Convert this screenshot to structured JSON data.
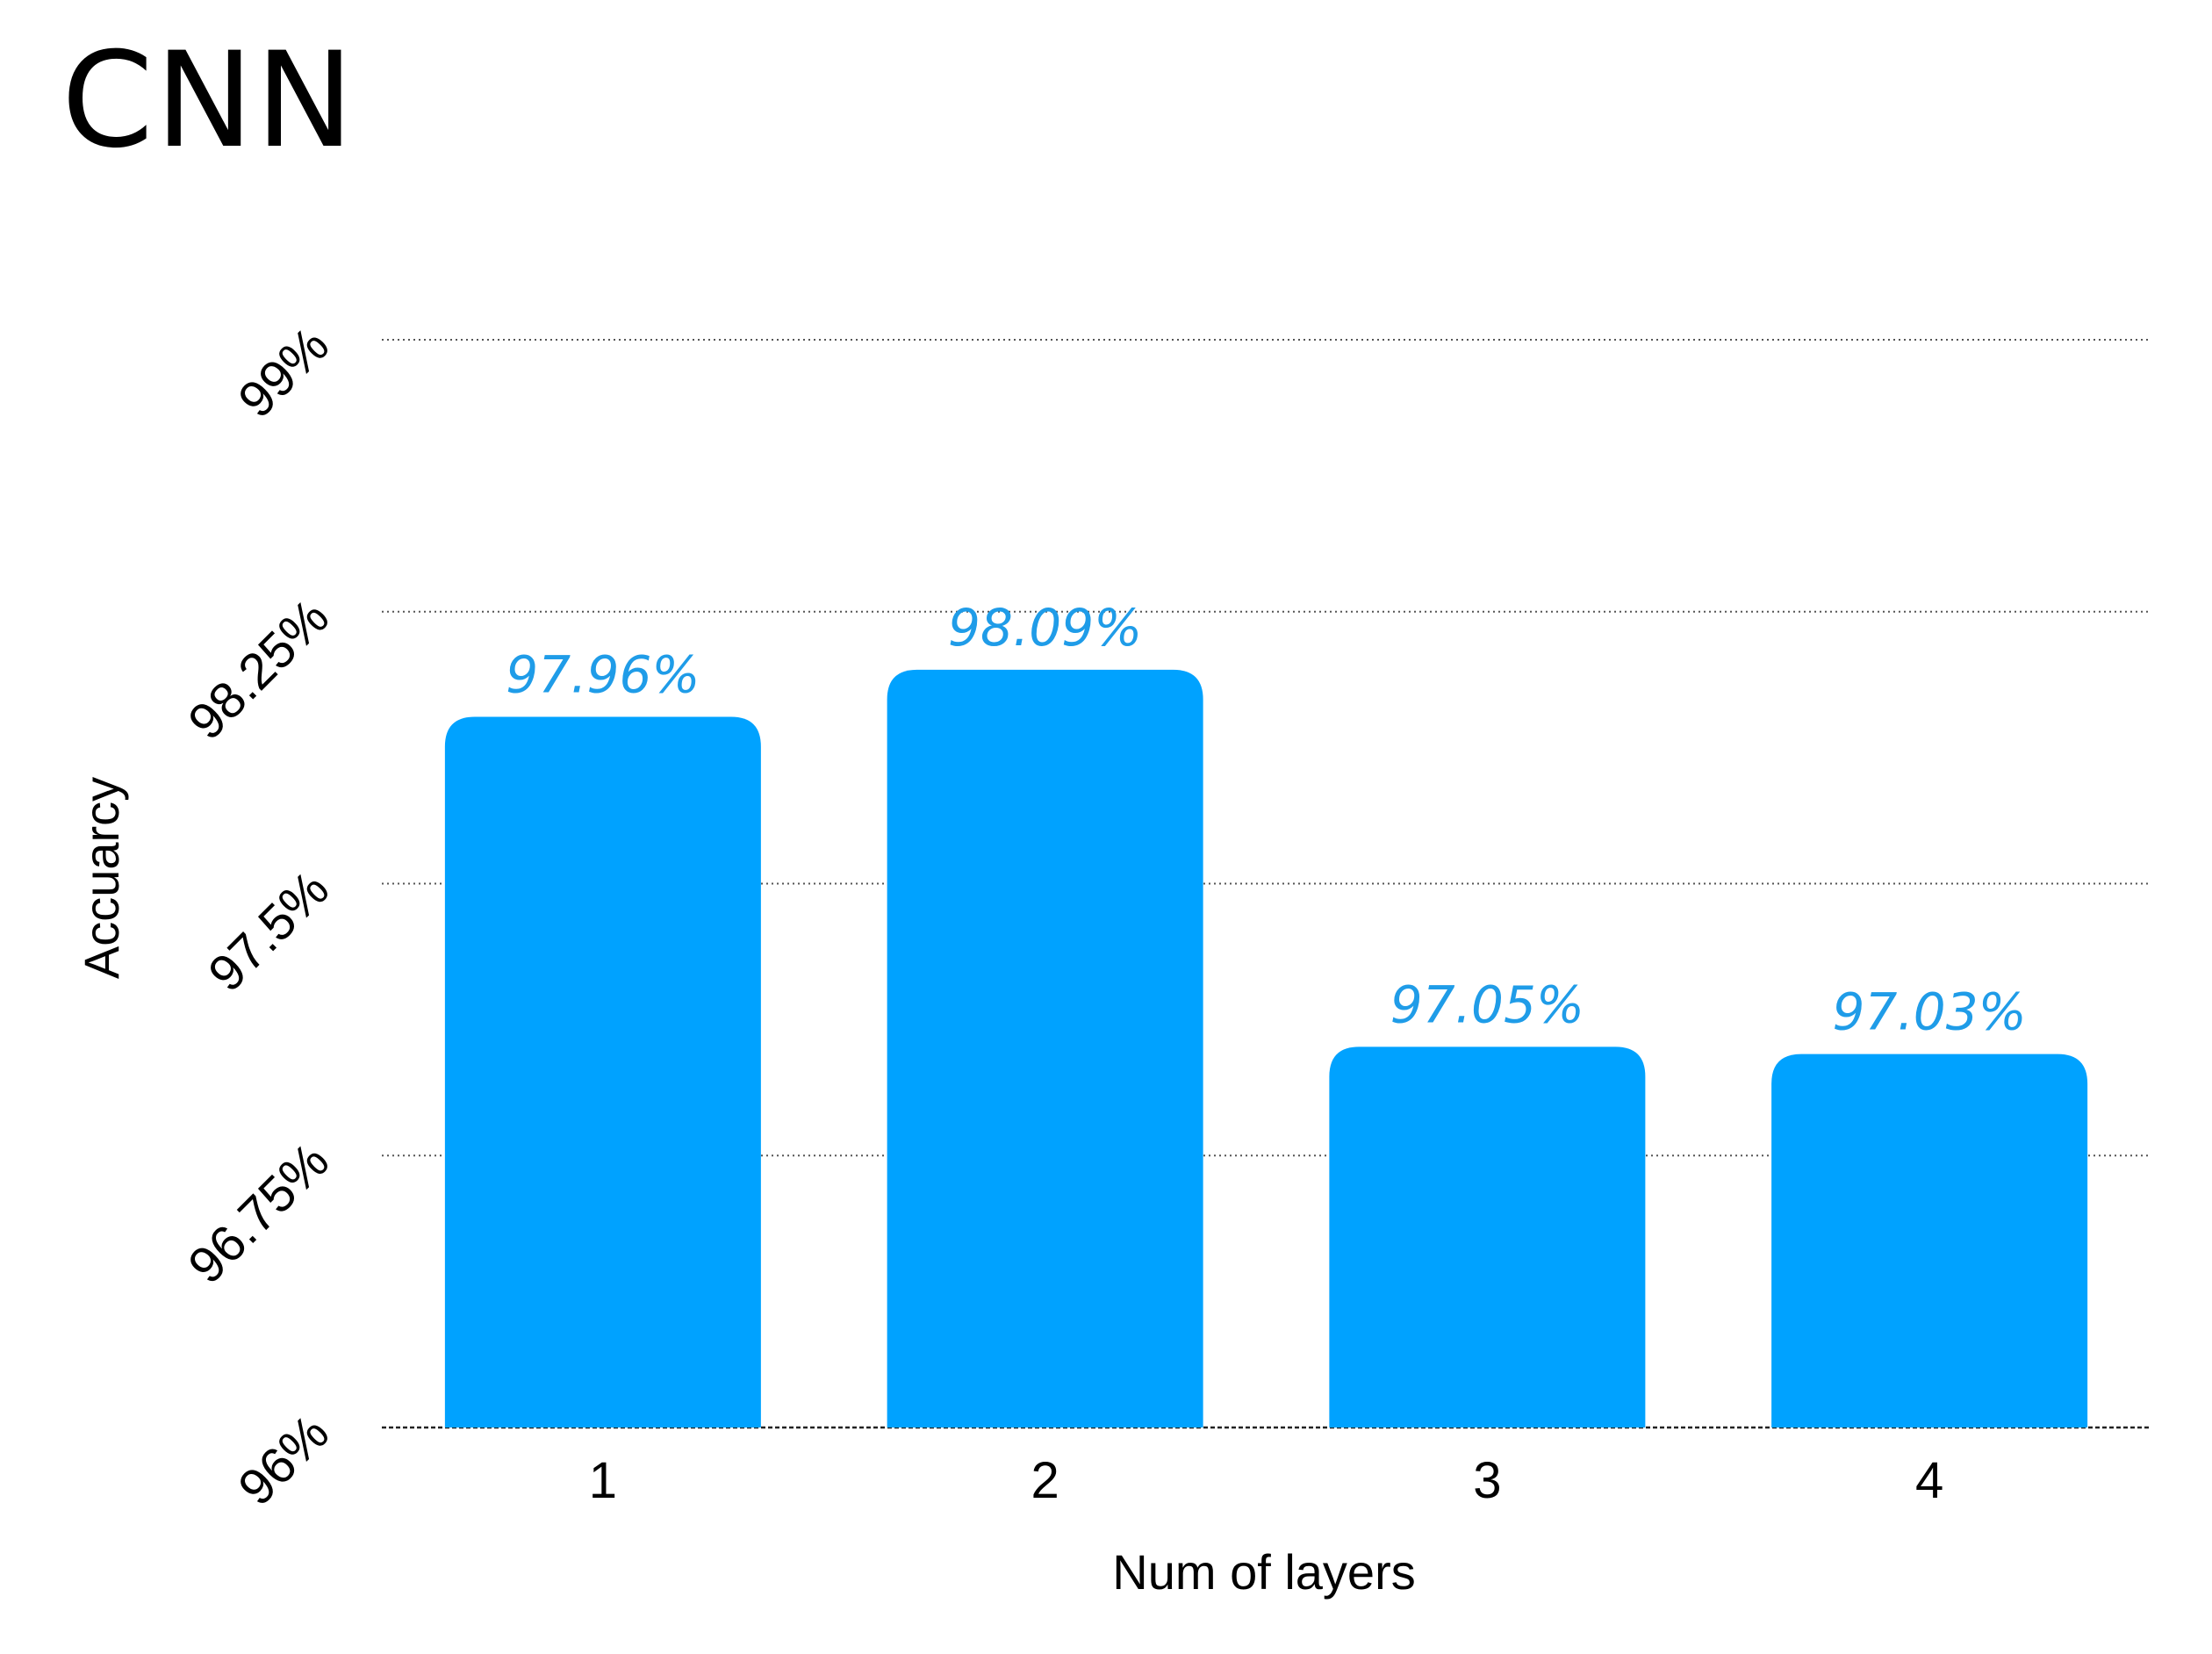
{
  "page": {
    "title": "CNN"
  },
  "chart_data": {
    "type": "bar",
    "title": "",
    "xlabel": "Num of layers",
    "ylabel": "Accuarcy",
    "categories": [
      "1",
      "2",
      "3",
      "4"
    ],
    "values": [
      97.96,
      98.09,
      97.05,
      97.03
    ],
    "data_labels": [
      "97.96%",
      "98.09%",
      "97.05%",
      "97.03%"
    ],
    "ylim": [
      96,
      99
    ],
    "yticks": [
      96,
      96.75,
      97.5,
      98.25,
      99
    ],
    "ytick_labels": [
      "96%",
      "96.75%",
      "97.5%",
      "98.25%",
      "99%"
    ],
    "grid": true,
    "legend": "none",
    "colors": {
      "bar": "#00a2ff",
      "data_label": "#1f9ce8",
      "grid": "#555555"
    }
  }
}
